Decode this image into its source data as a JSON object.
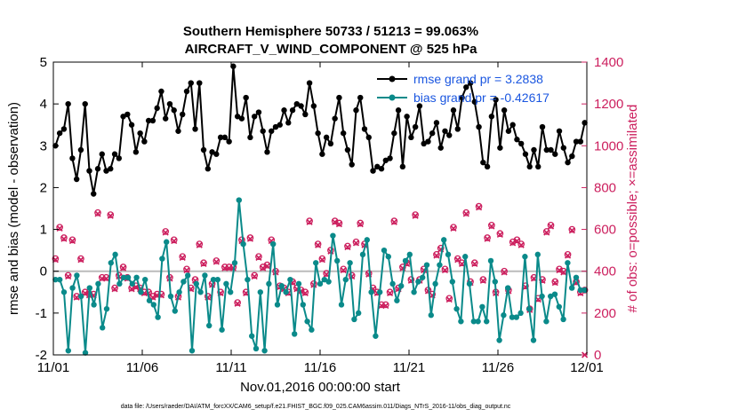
{
  "chart_data": {
    "type": "line",
    "title_line1": "Southern Hemisphere 50733 / 51213 = 99.063%",
    "title_line2": "AIRCRAFT_V_WIND_COMPONENT @ 525 hPa",
    "xlabel": "Nov.01,2016 00:00:00 start",
    "ylabel_left": "rmse and bias (model - observation)",
    "ylabel_right": "# of obs: o=possible; ×=assimilated",
    "footnote": "data file: /Users/raeder/DAI/ATM_forcXX/CAM6_setup/f.e21.FHIST_BGC.f09_025.CAM6assim.011/Diags_NTrS_2016-11/obs_diag_output.nc",
    "xlim": [
      0,
      30
    ],
    "ylim_left": [
      -2,
      5
    ],
    "ylim_right": [
      0,
      1400
    ],
    "x_ticks": [
      0,
      5,
      10,
      15,
      20,
      25,
      30
    ],
    "x_tick_labels": [
      "11/01",
      "11/06",
      "11/11",
      "11/16",
      "11/21",
      "11/26",
      "12/01"
    ],
    "y_left_ticks": [
      "-2",
      "-1",
      "0",
      "1",
      "2",
      "3",
      "4",
      "5"
    ],
    "y_right_ticks": [
      "0",
      "200",
      "400",
      "600",
      "800",
      "1000",
      "1200",
      "1400"
    ],
    "zero_line": 0,
    "legend": [
      "rmse grand pr = 3.2838",
      "bias grand pr = -0.42617"
    ],
    "colors": {
      "rmse": "#000000",
      "bias": "#0a8a8a",
      "obs": "#cc1f5e",
      "zero": "#bbbbbb"
    },
    "series": [
      {
        "name": "rmse",
        "axis": "left",
        "values": [
          3.0,
          3.3,
          3.4,
          4.0,
          2.7,
          2.2,
          2.9,
          4.0,
          2.4,
          1.85,
          2.45,
          2.8,
          2.4,
          2.45,
          2.8,
          2.7,
          3.7,
          3.75,
          3.5,
          2.85,
          3.3,
          3.1,
          3.6,
          3.6,
          3.9,
          4.3,
          3.65,
          4.0,
          3.85,
          3.35,
          3.75,
          4.3,
          4.5,
          3.4,
          4.5,
          2.9,
          2.45,
          2.85,
          2.8,
          3.2,
          3.2,
          3.1,
          4.9,
          3.7,
          3.65,
          4.15,
          3.2,
          3.7,
          3.8,
          3.35,
          2.85,
          3.35,
          3.45,
          3.5,
          3.85,
          3.55,
          3.85,
          4.0,
          3.95,
          3.75,
          4.5,
          3.95,
          3.3,
          2.8,
          3.2,
          3.05,
          3.65,
          4.15,
          3.3,
          2.9,
          2.55,
          3.85,
          4.15,
          3.4,
          3.2,
          2.4,
          2.5,
          2.45,
          2.65,
          2.7,
          3.3,
          3.85,
          2.5,
          3.7,
          3.2,
          3.45,
          3.95,
          3.05,
          3.1,
          3.3,
          3.55,
          2.95,
          3.35,
          3.25,
          3.85,
          3.4,
          4.15,
          4.4,
          4.5,
          4.05,
          3.45,
          2.6,
          2.5,
          3.7,
          4.1,
          2.95,
          3.85,
          3.35,
          3.5,
          3.15,
          3.05,
          2.8,
          2.5,
          2.9,
          2.5,
          3.45,
          2.9,
          2.9,
          2.8,
          3.35,
          2.95,
          2.6,
          2.75,
          3.1,
          3.1,
          3.55
        ]
      },
      {
        "name": "bias",
        "axis": "left",
        "values": [
          -0.2,
          -0.2,
          -0.5,
          -1.9,
          -0.4,
          -0.1,
          -0.6,
          -1.95,
          -0.4,
          -0.8,
          -0.3,
          -1.35,
          -0.9,
          0.2,
          0.4,
          -0.3,
          -0.15,
          -0.15,
          -0.3,
          -0.15,
          -0.5,
          -0.2,
          -0.7,
          -0.8,
          -1.1,
          0.3,
          0.7,
          -0.6,
          -0.95,
          -0.5,
          -0.25,
          -0.1,
          -1.9,
          -0.3,
          -0.5,
          -0.1,
          -1.3,
          -0.2,
          -0.2,
          -1.4,
          -0.3,
          -0.5,
          0.2,
          1.7,
          0.65,
          -0.2,
          -1.55,
          -1.85,
          -0.5,
          -1.9,
          -0.3,
          0.65,
          -0.8,
          -0.35,
          -0.5,
          -0.2,
          -1.5,
          -0.3,
          -0.8,
          -1.2,
          -1.4,
          0.2,
          -0.3,
          -0.2,
          -0.25,
          0.85,
          0.25,
          -0.8,
          -0.2,
          0.2,
          -1.15,
          -1.0,
          0.4,
          0.75,
          -0.5,
          -1.55,
          -0.5,
          0.5,
          0.35,
          -0.3,
          -0.7,
          -0.35,
          0.25,
          0.4,
          -0.5,
          -0.25,
          -0.15,
          0.15,
          -1.05,
          -0.3,
          0.15,
          0.75,
          0.4,
          -0.25,
          -0.9,
          -1.2,
          0.35,
          -0.3,
          -1.2,
          -1.2,
          -0.85,
          -1.2,
          0.25,
          -0.25,
          -1.65,
          -1.05,
          -0.4,
          -1.1,
          -1.1,
          -1.0,
          0.35,
          -0.9,
          -1.65,
          0.4,
          -0.6,
          -1.2,
          -0.6,
          -0.55,
          -0.85,
          -1.15,
          0.2,
          -0.4,
          -0.15,
          -0.45,
          -0.45
        ]
      },
      {
        "name": "obs_possible",
        "axis": "right",
        "values": [
          460,
          610,
          560,
          380,
          550,
          280,
          460,
          300,
          290,
          290,
          680,
          370,
          370,
          670,
          320,
          380,
          420,
          370,
          320,
          330,
          320,
          300,
          300,
          280,
          290,
          290,
          590,
          370,
          550,
          280,
          470,
          410,
          320,
          360,
          530,
          440,
          280,
          340,
          450,
          300,
          420,
          420,
          420,
          250,
          550,
          300,
          560,
          380,
          470,
          420,
          430,
          550,
          400,
          330,
          320,
          300,
          350,
          320,
          310,
          300,
          640,
          340,
          530,
          460,
          390,
          500,
          640,
          630,
          410,
          520,
          380,
          540,
          630,
          530,
          390,
          320,
          300,
          240,
          240,
          300,
          640,
          320,
          420,
          440,
          360,
          670,
          360,
          410,
          310,
          290,
          480,
          510,
          410,
          270,
          610,
          460,
          440,
          680,
          350,
          440,
          710,
          360,
          560,
          620,
          300,
          580,
          400,
          310,
          540,
          550,
          530,
          330,
          220,
          370,
          270,
          360,
          590,
          620,
          350,
          410,
          400,
          480,
          600,
          350,
          300,
          310
        ]
      },
      {
        "name": "obs_assimilated",
        "axis": "right",
        "values": [
          455,
          605,
          555,
          375,
          545,
          275,
          455,
          295,
          285,
          285,
          675,
          365,
          365,
          665,
          315,
          375,
          415,
          365,
          315,
          325,
          315,
          295,
          295,
          275,
          285,
          285,
          585,
          365,
          545,
          275,
          465,
          405,
          315,
          355,
          525,
          435,
          275,
          335,
          445,
          295,
          415,
          415,
          415,
          245,
          545,
          295,
          555,
          375,
          465,
          415,
          425,
          545,
          395,
          325,
          315,
          295,
          345,
          315,
          305,
          295,
          635,
          335,
          525,
          455,
          385,
          495,
          635,
          625,
          405,
          515,
          375,
          535,
          625,
          525,
          385,
          315,
          295,
          235,
          235,
          295,
          635,
          315,
          415,
          435,
          355,
          665,
          355,
          405,
          305,
          285,
          475,
          505,
          405,
          265,
          605,
          455,
          435,
          675,
          345,
          435,
          705,
          355,
          555,
          615,
          295,
          575,
          395,
          305,
          535,
          545,
          525,
          325,
          215,
          365,
          265,
          355,
          585,
          615,
          345,
          405,
          395,
          475,
          595,
          345,
          295,
          0
        ]
      }
    ]
  }
}
